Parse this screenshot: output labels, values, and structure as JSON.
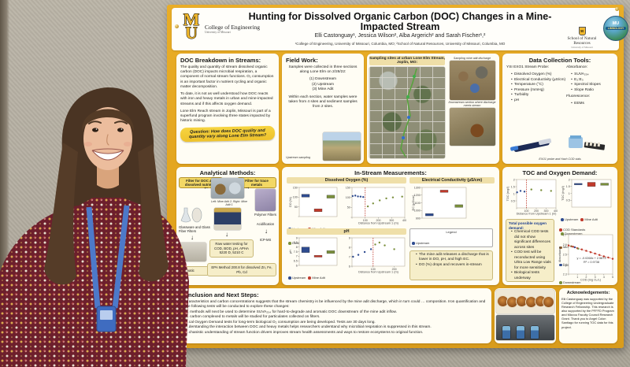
{
  "poster": {
    "header": {
      "title": "Hunting for Dissolved Organic Carbon (DOC) Changes in a Mine-Impacted Stream",
      "authors": "Elli Castonguay¹, Jessica Wilson², Alba Argerich² and Sarah Fischer¹,²",
      "affiliations": "¹College of Engineering, University of Missouri, Columbia, MO; ²School of Natural Resources, University of Missouri, Columbia, MO",
      "mu_letters": "MU",
      "college": "College of Engineering",
      "college_sub": "University of Missouri",
      "snr": "School of Natural Resources",
      "snr_sub": "University of Missouri",
      "limno_top": "MU",
      "limno_name": "LIMNOLOGY"
    },
    "doc_breakdown": {
      "title": "DOC Breakdown in Streams:",
      "p1": "The quality and quantity of stream dissolved organic carbon (DOC) impacts microbial respiration, a component of normal stream functions. O₂ consumption is an important factor in nutrient cycling and organic matter decomposition.",
      "p2": "To date, it is not as well understood how DOC reacts with iron and heavy metals in urban and mine-impacted streams and if this affects oxygen demand.",
      "p3": "Lone Elm Reach stream in Joplin, Missouri is part of a superfund program involving three states impacted by historic mining.",
      "question": "Question: How does DOC quality and quantity vary along Lone Elm Stream?"
    },
    "field_work": {
      "title": "Field Work:",
      "intro": "Samples were collected in three sections along Lone Elm on 2/28/22:",
      "items": [
        "(1) Downstream",
        "(2) Upstream",
        "(3) Mine Adit"
      ],
      "note": "Within each section, water samples were taken from 4 sites and sediment samples from 2 sites.",
      "caption": "Upstream sampling"
    },
    "sampling_sites": {
      "title": "Sampling sites at urban Lone Elm Stream, Joplin, MO:",
      "photo1_caption": "Sampling mine adit discharge",
      "photo2_caption": "Downstream section where discharge meets stream"
    },
    "data_tools": {
      "title": "Data Collection Tools:",
      "probe_heading": "YSI EXO1 Stream Probe:",
      "probe_items": [
        "Dissolved Oxygen (%)",
        "Electrical Conductivity (µS/cm)",
        "Temperature (°C)",
        "Pressure (mmHg)",
        "Turbidity",
        "pH"
      ],
      "absorbance_heading": "Absorbance:",
      "absorbance_items": [
        "SUVA₂₅₄",
        "E₂:E₃",
        "Spectral Slopes",
        "Slope Ratio"
      ],
      "fluorescence_heading": "Fluorescence:",
      "fluorescence_items": [
        "EEMs"
      ],
      "caption": "EXO1 probe and Hach COD vials"
    },
    "analytical": {
      "title": "Analytical Methods:",
      "label_left": "Filter for DOC and dissolved nutrients",
      "label_right": "Filter for trace metals",
      "photo_caption": "Left: Mine Adit 2; Right: Mine Adit 1",
      "left_step": "Glassware and Glass Fiber Filters",
      "center_box": "Raw water testing for COD, BOD, pH, APHA 5220 D, 5210 C",
      "right_step1": "Polymer Filters",
      "right_step2": "Acidification",
      "right_step3": "ICP-MS",
      "occluded_box": "…matic",
      "bottom_box": "EPA Method 200.8 for dissolved Zn, Fe, Pb, Cd"
    },
    "in_stream": {
      "title": "In-Stream Measurements:",
      "do_header": "Dissolved Oxygen (%)",
      "ec_header": "Electrical Conductivity (µS/cm)",
      "ph_header": "pH",
      "legend_title": "Legend",
      "legend_items": [
        {
          "label": "Upstream",
          "color": "#2e4b8f"
        },
        {
          "label": "Downstream",
          "color": "#7a8f3c"
        },
        {
          "label": "Mine Adit Discharge Enters Stream",
          "color": "#c0392b"
        }
      ],
      "notes": [
        "The mine adit releases a discharge that is lower in DO, pH, and high EC.",
        "DO (%) drops and recovers in-stream"
      ]
    },
    "toc_section": {
      "title": "TOC and Oxygen Demand:",
      "demand_title": "Total possible oxygen demand:",
      "demand_items": [
        "Chemical COD tests did not show significant differences across sites",
        "COD test will be reconducted using Ultra Low Range vials for more sensitivity",
        "Biological tests underway"
      ],
      "cod_legend": [
        {
          "label": "COD Standards",
          "color": "#c0392b"
        },
        {
          "label": "Mine Adit",
          "color": "#8a5a2a"
        },
        {
          "label": "Upstream",
          "color": "#2e4b8f"
        },
        {
          "label": "Downstream",
          "color": "#7a8f3c"
        }
      ]
    },
    "conclusion": {
      "title": "Conclusion and Next Steps:",
      "lines": [
        "…aracteristics and carbon concentrations suggests that the stream chemistry is be influenced by the mine adit discharge, which in turn could … composition. Iron quantification and the following tests will be conducted to explore these changes:",
        "… methods will next be used to determine SUVA₂₅₄ for hard-to-degrade and aromatic DOC downstream of the mine adit inflow.",
        "… carbon complexed to metals will be studied for particulates collected on filters.",
        "…cal Oxygen Demand tests for long-term biological O₂ consumption are being developed. Tests are 30 days long.",
        "…derstanding the interaction between DOC and heavy metals helps researchers understand why microbial respiration is suppressed in this stream.",
        "…chanistic understanding of stream function drivers improves stream health assessments and ways to restore ecosystems to original function."
      ]
    },
    "acknowledgements": {
      "title": "Acknowledgements:",
      "text": "Elli Castonguay was supported by the College of Engineering Undergraduate Research Fellowship. This research is also supported by the PFFFD Program and Mizzou Faculty Council Research Grant. Thank you to Angel Colon Santiago for running TOC data for this project."
    }
  },
  "chart_data": [
    {
      "type": "box",
      "title": "Dissolved Oxygen (%) box plot",
      "ylabel": "DO (%)",
      "ylim": [
        0,
        150
      ],
      "yticks": [
        0,
        50,
        100,
        150
      ],
      "groups": [
        {
          "name": "Upstream",
          "color": "#2e4b8f",
          "low": 100,
          "high": 115
        },
        {
          "name": "Mine Adit",
          "color": "#c0392b",
          "low": 25,
          "high": 40
        },
        {
          "name": "Downstream",
          "color": "#7a8f3c",
          "low": 95,
          "high": 110
        }
      ]
    },
    {
      "type": "scatter",
      "title": "DO along stream",
      "xlabel": "Distance from Upstream 1 (m)",
      "xlim": [
        0,
        400
      ],
      "xticks": [
        0,
        100,
        200,
        300,
        400
      ],
      "ylim": [
        0,
        150
      ],
      "yticks": [
        0,
        50,
        100,
        150
      ],
      "vline": {
        "x": 100,
        "color": "#c0392b"
      },
      "series": [
        {
          "name": "Upstream",
          "color": "#2e4b8f",
          "points": [
            [
              5,
              107
            ],
            [
              25,
              109
            ],
            [
              45,
              105
            ],
            [
              65,
              104
            ],
            [
              85,
              102
            ]
          ]
        },
        {
          "name": "Downstream",
          "color": "#7a8f3c",
          "points": [
            [
              120,
              55
            ],
            [
              160,
              70
            ],
            [
              210,
              85
            ],
            [
              260,
              95
            ],
            [
              310,
              100
            ],
            [
              380,
              104
            ]
          ]
        }
      ]
    },
    {
      "type": "box",
      "title": "Electrical Conductivity box plot",
      "ylabel": "EC (µS/cm)",
      "ylim": [
        900,
        1300
      ],
      "yticks": [
        900,
        1000,
        1100,
        1200,
        1300
      ],
      "groups": [
        {
          "name": "Upstream",
          "color": "#2e4b8f",
          "low": 930,
          "high": 960
        },
        {
          "name": "Mine Adit",
          "color": "#c0392b",
          "low": 1235,
          "high": 1265
        },
        {
          "name": "Downstream",
          "color": "#7a8f3c",
          "low": 1040,
          "high": 1075
        }
      ]
    },
    {
      "type": "box",
      "title": "pH box plot",
      "ylabel": "pH",
      "ylim": [
        6,
        9
      ],
      "yticks": [
        6,
        6.5,
        7,
        7.5,
        8,
        8.5,
        9
      ],
      "groups": [
        {
          "name": "Upstream",
          "color": "#2e4b8f",
          "low": 7.4,
          "high": 8.0
        },
        {
          "name": "Mine Adit",
          "color": "#c0392b",
          "low": 6.9,
          "high": 7.1
        },
        {
          "name": "Downstream",
          "color": "#7a8f3c",
          "low": 7.3,
          "high": 7.6
        }
      ]
    },
    {
      "type": "scatter",
      "title": "pH along stream",
      "xlabel": "Distance from Upstream 1 (m)",
      "xlim": [
        0,
        250
      ],
      "xticks": [
        0,
        100,
        200
      ],
      "ylim": [
        6,
        9
      ],
      "yticks": [
        6,
        7,
        8,
        9
      ],
      "vline": {
        "x": 100,
        "color": "#c0392b"
      },
      "series": [
        {
          "name": "Upstream",
          "color": "#2e4b8f",
          "points": [
            [
              5,
              7.0
            ],
            [
              30,
              7.2
            ],
            [
              60,
              7.5
            ],
            [
              90,
              7.8
            ]
          ]
        },
        {
          "name": "Downstream",
          "color": "#7a8f3c",
          "points": [
            [
              110,
              8.3
            ],
            [
              130,
              8.5
            ],
            [
              155,
              8.2
            ],
            [
              200,
              7.8
            ]
          ]
        }
      ]
    },
    {
      "type": "scatter",
      "title": "TOC along stream",
      "ylabel": "TOC (mg/l)",
      "ylim": [
        0,
        2
      ],
      "yticks": [
        0.5,
        1,
        1.5,
        2
      ],
      "xlabel": "Distance from Upstream 1 (m)",
      "xlim": [
        0,
        400
      ],
      "xticks": [
        0,
        100,
        200,
        300,
        400
      ],
      "vline": {
        "x": 100,
        "color": "#c0392b"
      },
      "series": [
        {
          "name": "Upstream",
          "color": "#2e4b8f",
          "points": [
            [
              5,
              1.1
            ],
            [
              40,
              1.2
            ],
            [
              80,
              1.15
            ]
          ]
        },
        {
          "name": "Downstream",
          "color": "#7a8f3c",
          "points": [
            [
              150,
              1.3
            ],
            [
              250,
              1.25
            ],
            [
              350,
              1.2
            ]
          ]
        }
      ]
    },
    {
      "type": "box",
      "title": "TOC by site",
      "ylabel": "TOC (mg/l)",
      "ylim": [
        0,
        2
      ],
      "yticks": [
        0.5,
        1,
        1.5,
        2
      ],
      "groups": [
        {
          "name": "Upstream",
          "color": "#2e4b8f",
          "low": 1.62,
          "high": 1.72
        },
        {
          "name": "Mine Adit",
          "color": "#c0392b",
          "low": 1.5,
          "high": 1.8
        },
        {
          "name": "Downstream",
          "color": "#7a8f3c",
          "low": 1.58,
          "high": 1.74
        }
      ]
    },
    {
      "type": "line",
      "title": "Absorbance vs COD",
      "ylabel": "Absorbance",
      "ylim": [
        2.3,
        2.7
      ],
      "yticks": [
        2.3,
        2.4,
        2.5,
        2.6,
        2.7
      ],
      "xlabel": "COD (mg O₂/L)",
      "xlim": [
        0,
        5
      ],
      "xticks": [
        0,
        1,
        2,
        3,
        4,
        5
      ],
      "equation": "y = -0.0268x + 2.5873",
      "r2": "R² = 0.9738",
      "series": [
        {
          "name": "COD Standards",
          "color": "#c0392b",
          "points": [
            [
              0,
              2.59
            ],
            [
              0.5,
              2.578
            ],
            [
              1,
              2.562
            ],
            [
              1.5,
              2.55
            ],
            [
              2,
              2.536
            ],
            [
              2.5,
              2.522
            ],
            [
              3,
              2.508
            ],
            [
              3.5,
              2.494
            ],
            [
              4,
              2.48
            ],
            [
              4.5,
              2.468
            ],
            [
              5,
              2.455
            ]
          ]
        },
        {
          "name": "Mine Adit",
          "color": "#8a5a2a",
          "points": [
            [
              0.3,
              2.582
            ]
          ]
        },
        {
          "name": "Upstream",
          "color": "#2e4b8f",
          "points": [
            [
              0.7,
              2.572
            ]
          ]
        },
        {
          "name": "Downstream",
          "color": "#7a8f3c",
          "points": [
            [
              1.1,
              2.558
            ]
          ]
        }
      ]
    }
  ]
}
